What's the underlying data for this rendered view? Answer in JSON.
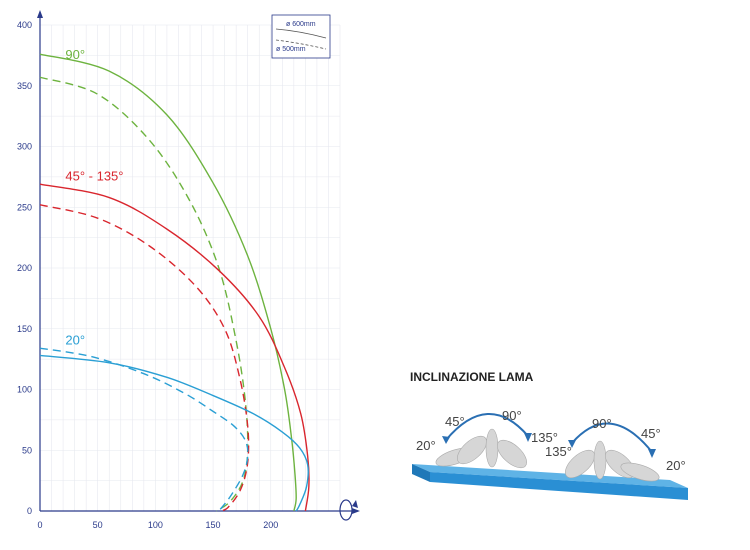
{
  "chart_data": {
    "type": "line",
    "title": "",
    "xlabel": "",
    "ylabel": "",
    "xlim": [
      0,
      260
    ],
    "ylim": [
      0,
      400
    ],
    "xticks": [
      0,
      50,
      100,
      150,
      200
    ],
    "yticks": [
      0,
      50,
      100,
      150,
      200,
      250,
      300,
      350,
      400
    ],
    "grid": true,
    "legend": {
      "placement": "top-right",
      "entries": [
        {
          "label": "ø 600mm",
          "style": "solid"
        },
        {
          "label": "ø 500mm",
          "style": "dashed"
        }
      ]
    },
    "series": [
      {
        "group": "90°",
        "diameter": "ø 600mm",
        "style": "solid",
        "color": "#6db33f",
        "points": [
          [
            0,
            376
          ],
          [
            60,
            362
          ],
          [
            110,
            326
          ],
          [
            150,
            270
          ],
          [
            180,
            210
          ],
          [
            200,
            150
          ],
          [
            212,
            100
          ],
          [
            218,
            60
          ],
          [
            221,
            30
          ],
          [
            222,
            10
          ],
          [
            220,
            0
          ]
        ]
      },
      {
        "group": "90°",
        "diameter": "ø 500mm",
        "style": "dashed",
        "color": "#6db33f",
        "points": [
          [
            0,
            357
          ],
          [
            50,
            343
          ],
          [
            95,
            305
          ],
          [
            130,
            255
          ],
          [
            155,
            200
          ],
          [
            170,
            140
          ],
          [
            178,
            90
          ],
          [
            180,
            50
          ],
          [
            176,
            25
          ],
          [
            165,
            8
          ],
          [
            153,
            0
          ]
        ]
      },
      {
        "group": "45° - 135°",
        "diameter": "ø 600mm",
        "style": "solid",
        "color": "#d9262e",
        "points": [
          [
            0,
            269
          ],
          [
            60,
            258
          ],
          [
            110,
            232
          ],
          [
            155,
            198
          ],
          [
            190,
            160
          ],
          [
            212,
            118
          ],
          [
            226,
            80
          ],
          [
            232,
            45
          ],
          [
            233,
            20
          ],
          [
            230,
            0
          ]
        ]
      },
      {
        "group": "45° - 135°",
        "diameter": "ø 500mm",
        "style": "dashed",
        "color": "#d9262e",
        "points": [
          [
            0,
            252
          ],
          [
            50,
            241
          ],
          [
            95,
            218
          ],
          [
            135,
            185
          ],
          [
            160,
            150
          ],
          [
            173,
            110
          ],
          [
            180,
            70
          ],
          [
            180,
            40
          ],
          [
            174,
            18
          ],
          [
            163,
            3
          ],
          [
            156,
            0
          ]
        ]
      },
      {
        "group": "20°",
        "diameter": "ø 600mm",
        "style": "solid",
        "color": "#2a9fd4",
        "points": [
          [
            0,
            128
          ],
          [
            60,
            122
          ],
          [
            110,
            110
          ],
          [
            150,
            95
          ],
          [
            185,
            80
          ],
          [
            210,
            65
          ],
          [
            225,
            52
          ],
          [
            232,
            38
          ],
          [
            231,
            20
          ],
          [
            225,
            5
          ],
          [
            222,
            0
          ]
        ]
      },
      {
        "group": "20°",
        "diameter": "ø 500mm",
        "style": "dashed",
        "color": "#2a9fd4",
        "points": [
          [
            0,
            134
          ],
          [
            45,
            127
          ],
          [
            90,
            113
          ],
          [
            125,
            97
          ],
          [
            150,
            82
          ],
          [
            168,
            70
          ],
          [
            178,
            58
          ],
          [
            180,
            45
          ],
          [
            176,
            30
          ],
          [
            165,
            12
          ],
          [
            155,
            0
          ]
        ]
      }
    ],
    "curve_labels": [
      {
        "text": "90°",
        "color": "#6db33f",
        "x": 22,
        "y": 372
      },
      {
        "text": "45° - 135°",
        "color": "#d9262e",
        "x": 22,
        "y": 272
      },
      {
        "text": "20°",
        "color": "#2a9fd4",
        "x": 22,
        "y": 137
      }
    ]
  },
  "illustration": {
    "title": "INCLINAZIONE LAMA",
    "left_angles": [
      "20°",
      "45°",
      "90°",
      "135°"
    ],
    "right_angles": [
      "135°",
      "90°",
      "45°",
      "20°"
    ]
  }
}
